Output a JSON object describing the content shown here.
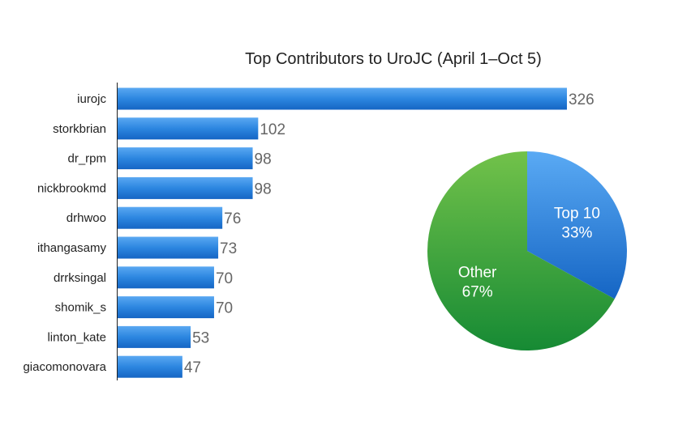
{
  "chart_data": [
    {
      "type": "bar",
      "orientation": "horizontal",
      "title": "Top Contributors to UroJC (April 1–Oct 5)",
      "categories": [
        "iurojc",
        "storkbrian",
        "dr_rpm",
        "nickbrookmd",
        "drhwoo",
        "ithangasamy",
        "drrksingal",
        "shomik_s",
        "linton_kate",
        "giacomonovara"
      ],
      "values": [
        326,
        102,
        98,
        98,
        76,
        73,
        70,
        70,
        53,
        47
      ],
      "xlim": [
        0,
        326
      ],
      "bar_color": "#1e78d6",
      "grid": false,
      "data_labels": true
    },
    {
      "type": "pie",
      "slices": [
        {
          "label": "Top 10",
          "percent_label": "33%",
          "value": 33,
          "color": "#3a8fe0"
        },
        {
          "label": "Other",
          "percent_label": "67%",
          "value": 67,
          "color": "#3fa63a"
        }
      ]
    }
  ]
}
